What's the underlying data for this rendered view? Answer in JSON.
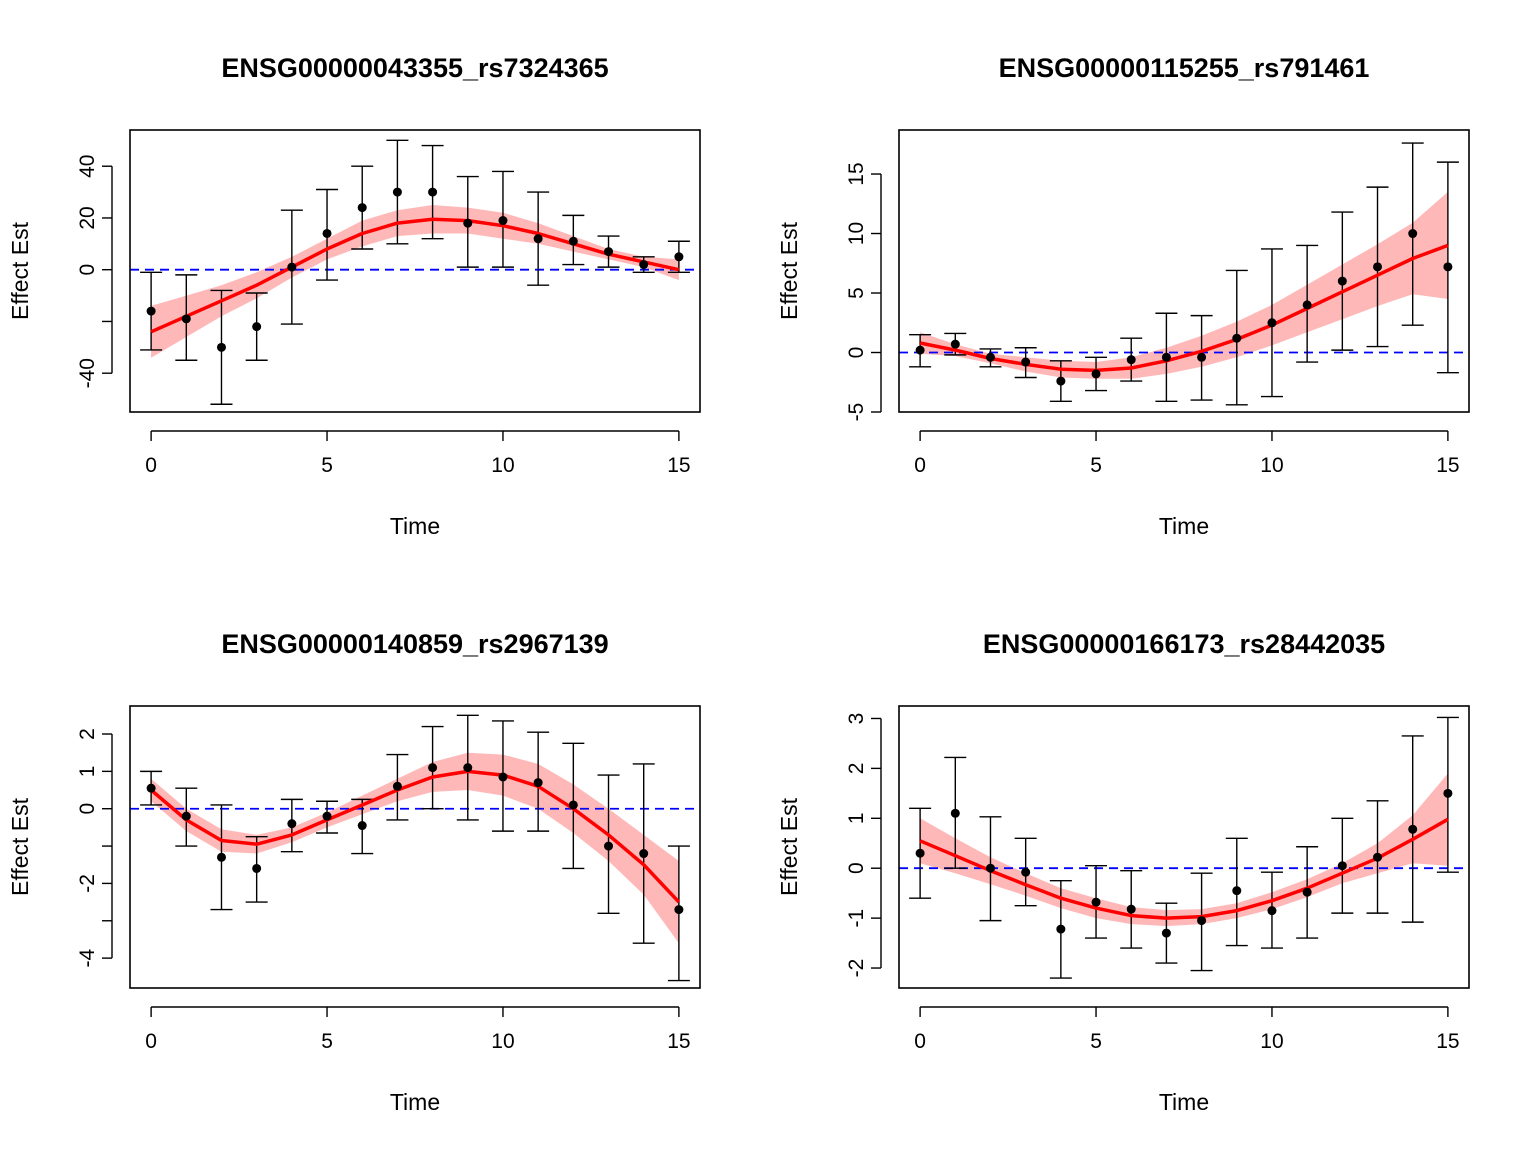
{
  "figure": {
    "background": "#ffffff"
  },
  "colors": {
    "fit_line": "#ff0000",
    "band": "#ffb0b0",
    "zero_line": "#0000ff",
    "points": "#000000"
  },
  "chart_data": [
    {
      "type": "scatter",
      "title": "ENSG00000043355_rs7324365",
      "xlabel": "Time",
      "ylabel": "Effect Est",
      "xlim": [
        -0.6,
        15.6
      ],
      "ylim": [
        -55,
        54
      ],
      "x_ticks": [
        0,
        5,
        10,
        15
      ],
      "x_tick_labels": [
        "0",
        "5",
        "10",
        "15"
      ],
      "y_ticks": [
        -40,
        -20,
        0,
        20,
        40
      ],
      "y_tick_labels": [
        "-40",
        "",
        "0",
        "20",
        "40"
      ],
      "reference_line": 0,
      "x": [
        0,
        1,
        2,
        3,
        4,
        5,
        6,
        7,
        8,
        9,
        10,
        11,
        12,
        13,
        14,
        15
      ],
      "estimates": [
        -16,
        -19,
        -30,
        -22,
        1,
        14,
        24,
        30,
        30,
        18,
        19,
        12,
        11,
        7,
        2,
        5
      ],
      "ci_lower": [
        -31,
        -35,
        -52,
        -35,
        -21,
        -4,
        8,
        10,
        12,
        1,
        1,
        -6,
        2,
        1,
        -1,
        -1
      ],
      "ci_upper": [
        -1,
        -2,
        -8,
        -9,
        23,
        31,
        40,
        50,
        48,
        36,
        38,
        30,
        21,
        13,
        5,
        11
      ],
      "fit": {
        "x": [
          0,
          1,
          2,
          3,
          4,
          5,
          6,
          7,
          8,
          9,
          10,
          11,
          12,
          13,
          14,
          15
        ],
        "y": [
          -24,
          -18,
          -12,
          -6,
          1,
          8,
          14,
          18,
          19.5,
          19,
          17,
          14,
          10,
          6,
          3,
          0
        ],
        "lower": [
          -34,
          -26,
          -18,
          -11,
          -3,
          4,
          9,
          13,
          14,
          14,
          12,
          10,
          7,
          4,
          1,
          -4
        ],
        "upper": [
          -14,
          -10,
          -6,
          -1,
          5,
          12,
          19,
          23,
          25,
          24,
          22,
          18,
          13,
          8,
          5,
          4
        ]
      }
    },
    {
      "type": "scatter",
      "title": "ENSG00000115255_rs791461",
      "xlabel": "Time",
      "ylabel": "Effect Est",
      "xlim": [
        -0.6,
        15.6
      ],
      "ylim": [
        -5,
        18.7
      ],
      "x_ticks": [
        0,
        5,
        10,
        15
      ],
      "x_tick_labels": [
        "0",
        "5",
        "10",
        "15"
      ],
      "y_ticks": [
        -5,
        0,
        5,
        10,
        15
      ],
      "y_tick_labels": [
        "-5",
        "0",
        "5",
        "10",
        "15"
      ],
      "reference_line": 0,
      "x": [
        0,
        1,
        2,
        3,
        4,
        5,
        6,
        7,
        8,
        9,
        10,
        11,
        12,
        13,
        14,
        15
      ],
      "estimates": [
        0.2,
        0.7,
        -0.4,
        -0.8,
        -2.4,
        -1.8,
        -0.6,
        -0.4,
        -0.4,
        1.2,
        2.5,
        4.0,
        6.0,
        7.2,
        10.0,
        7.2
      ],
      "ci_lower": [
        -1.2,
        -0.2,
        -1.2,
        -2.1,
        -4.1,
        -3.2,
        -2.4,
        -4.1,
        -4.0,
        -4.4,
        -3.7,
        -0.8,
        0.2,
        0.5,
        2.3,
        -1.7
      ],
      "ci_upper": [
        1.5,
        1.6,
        0.3,
        0.4,
        -0.7,
        -0.4,
        1.2,
        3.3,
        3.1,
        6.9,
        8.7,
        9.0,
        11.8,
        13.9,
        17.6,
        16.0
      ],
      "fit": {
        "x": [
          0,
          1,
          2,
          3,
          4,
          5,
          6,
          7,
          8,
          9,
          10,
          11,
          12,
          13,
          14,
          15
        ],
        "y": [
          0.8,
          0.2,
          -0.5,
          -1.0,
          -1.4,
          -1.5,
          -1.3,
          -0.7,
          0.1,
          1.1,
          2.3,
          3.7,
          5.1,
          6.5,
          7.9,
          9.0
        ],
        "lower": [
          -0.1,
          -0.3,
          -0.9,
          -1.6,
          -2.1,
          -2.2,
          -2.2,
          -1.8,
          -1.2,
          -0.4,
          0.6,
          1.7,
          2.8,
          3.9,
          4.9,
          4.5
        ],
        "upper": [
          1.7,
          0.7,
          -0.1,
          -0.4,
          -0.7,
          -0.8,
          -0.4,
          0.4,
          1.4,
          2.6,
          4.0,
          5.7,
          7.4,
          9.1,
          10.9,
          13.5
        ]
      }
    },
    {
      "type": "scatter",
      "title": "ENSG00000140859_rs2967139",
      "xlabel": "Time",
      "ylabel": "Effect Est",
      "xlim": [
        -0.6,
        15.6
      ],
      "ylim": [
        -4.8,
        2.75
      ],
      "x_ticks": [
        0,
        5,
        10,
        15
      ],
      "x_tick_labels": [
        "0",
        "5",
        "10",
        "15"
      ],
      "y_ticks": [
        -4,
        -3,
        -2,
        -1,
        0,
        1,
        2
      ],
      "y_tick_labels": [
        "-4",
        "",
        "-2",
        "",
        "0",
        "1",
        "2"
      ],
      "reference_line": 0,
      "x": [
        0,
        1,
        2,
        3,
        4,
        5,
        6,
        7,
        8,
        9,
        10,
        11,
        12,
        13,
        14,
        15
      ],
      "estimates": [
        0.55,
        -0.2,
        -1.3,
        -1.6,
        -0.4,
        -0.2,
        -0.45,
        0.6,
        1.1,
        1.1,
        0.85,
        0.7,
        0.1,
        -1.0,
        -1.2,
        -2.7
      ],
      "ci_lower": [
        0.1,
        -1.0,
        -2.7,
        -2.5,
        -1.15,
        -0.65,
        -1.2,
        -0.3,
        0.0,
        -0.3,
        -0.6,
        -0.6,
        -1.6,
        -2.8,
        -3.6,
        -4.6
      ],
      "ci_upper": [
        1.0,
        0.55,
        0.1,
        -0.75,
        0.25,
        0.2,
        0.25,
        1.45,
        2.2,
        2.5,
        2.35,
        2.05,
        1.75,
        0.9,
        1.2,
        -1.0
      ],
      "fit": {
        "x": [
          0,
          1,
          2,
          3,
          4,
          5,
          6,
          7,
          8,
          9,
          10,
          11,
          12,
          13,
          14,
          15
        ],
        "y": [
          0.5,
          -0.3,
          -0.85,
          -0.95,
          -0.7,
          -0.3,
          0.1,
          0.5,
          0.85,
          1.0,
          0.9,
          0.6,
          0.0,
          -0.7,
          -1.5,
          -2.5
        ],
        "lower": [
          0.2,
          -0.6,
          -1.15,
          -1.2,
          -0.9,
          -0.5,
          -0.15,
          0.2,
          0.45,
          0.5,
          0.35,
          0.0,
          -0.65,
          -1.4,
          -2.3,
          -3.6
        ],
        "upper": [
          0.8,
          0.0,
          -0.55,
          -0.7,
          -0.5,
          -0.1,
          0.35,
          0.8,
          1.25,
          1.5,
          1.45,
          1.2,
          0.65,
          0.0,
          -0.7,
          -1.4
        ]
      }
    },
    {
      "type": "scatter",
      "title": "ENSG00000166173_rs28442035",
      "xlabel": "Time",
      "ylabel": "Effect Est",
      "xlim": [
        -0.6,
        15.6
      ],
      "ylim": [
        -2.4,
        3.25
      ],
      "x_ticks": [
        0,
        5,
        10,
        15
      ],
      "x_tick_labels": [
        "0",
        "5",
        "10",
        "15"
      ],
      "y_ticks": [
        -2,
        -1,
        0,
        1,
        2,
        3
      ],
      "y_tick_labels": [
        "-2",
        "-1",
        "0",
        "1",
        "2",
        "3"
      ],
      "reference_line": 0,
      "x": [
        0,
        1,
        2,
        3,
        4,
        5,
        6,
        7,
        8,
        9,
        10,
        11,
        12,
        13,
        14,
        15
      ],
      "estimates": [
        0.3,
        1.1,
        0.0,
        -0.08,
        -1.22,
        -0.68,
        -0.82,
        -1.3,
        -1.05,
        -0.45,
        -0.85,
        -0.48,
        0.05,
        0.22,
        0.78,
        1.5
      ],
      "ci_lower": [
        -0.6,
        0.0,
        -1.05,
        -0.75,
        -2.2,
        -1.4,
        -1.6,
        -1.9,
        -2.05,
        -1.55,
        -1.6,
        -1.4,
        -0.9,
        -0.9,
        -1.08,
        -0.08
      ],
      "ci_upper": [
        1.2,
        2.22,
        1.03,
        0.6,
        -0.25,
        0.05,
        -0.05,
        -0.7,
        -0.1,
        0.6,
        -0.08,
        0.43,
        1.0,
        1.35,
        2.65,
        3.02
      ],
      "fit": {
        "x": [
          0,
          1,
          2,
          3,
          4,
          5,
          6,
          7,
          8,
          9,
          10,
          11,
          12,
          13,
          14,
          15
        ],
        "y": [
          0.55,
          0.25,
          -0.05,
          -0.33,
          -0.6,
          -0.8,
          -0.95,
          -1.0,
          -0.97,
          -0.85,
          -0.65,
          -0.4,
          -0.1,
          0.2,
          0.58,
          0.98
        ],
        "lower": [
          0.1,
          -0.1,
          -0.32,
          -0.55,
          -0.8,
          -1.0,
          -1.12,
          -1.16,
          -1.12,
          -1.0,
          -0.82,
          -0.58,
          -0.3,
          -0.1,
          0.1,
          0.05
        ],
        "upper": [
          1.0,
          0.6,
          0.22,
          -0.1,
          -0.4,
          -0.6,
          -0.78,
          -0.84,
          -0.82,
          -0.7,
          -0.48,
          -0.22,
          0.1,
          0.5,
          1.06,
          1.9
        ]
      }
    }
  ]
}
